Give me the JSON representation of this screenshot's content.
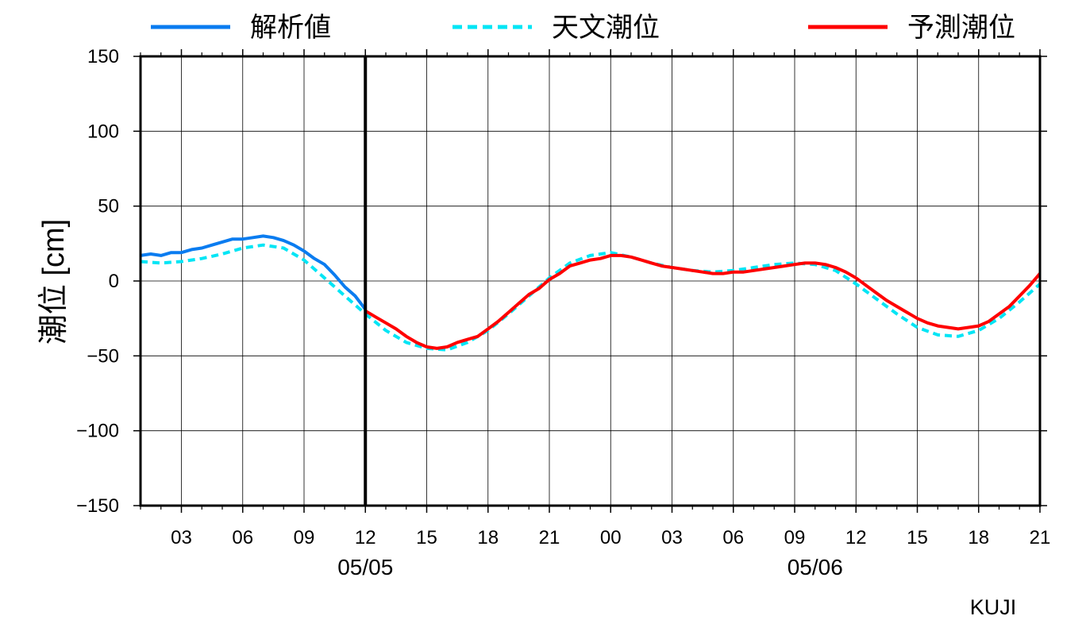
{
  "chart_data": {
    "type": "line",
    "ylabel": "潮位 [cm]",
    "ylim": [
      -150,
      150
    ],
    "y_ticks": [
      "150",
      "100",
      "50",
      "0",
      "−50",
      "−100",
      "−150"
    ],
    "x_tick_labels": [
      "03",
      "06",
      "09",
      "12",
      "15",
      "18",
      "21",
      "00",
      "03",
      "06",
      "09",
      "12",
      "15",
      "18",
      "21"
    ],
    "x_hour_range": [
      1,
      45
    ],
    "date_labels": [
      {
        "label": "05/05",
        "hour": 12
      },
      {
        "label": "05/06",
        "hour": 34
      }
    ],
    "analysis_boundary_hour": 12,
    "station": "KUJI",
    "legend_position": "top",
    "grid": true,
    "series": [
      {
        "name": "解析値",
        "color": "#0a7cf0",
        "style": "solid",
        "x": [
          1,
          1.5,
          2,
          2.5,
          3,
          3.5,
          4,
          4.5,
          5,
          5.5,
          6,
          6.5,
          7,
          7.5,
          8,
          8.5,
          9,
          9.5,
          10,
          10.5,
          11,
          11.5,
          12
        ],
        "y": [
          17,
          18,
          17,
          19,
          19,
          21,
          22,
          24,
          26,
          28,
          28,
          29,
          30,
          29,
          27,
          24,
          20,
          15,
          11,
          4,
          -4,
          -10,
          -19
        ]
      },
      {
        "name": "天文潮位",
        "color": "#00e5f5",
        "style": "dashed",
        "x": [
          1,
          2,
          3,
          4,
          5,
          6,
          7,
          8,
          9,
          10,
          11,
          12,
          13,
          14,
          15,
          16,
          17,
          18,
          19,
          20,
          21,
          22,
          23,
          24,
          25,
          26,
          27,
          28,
          29,
          30,
          31,
          32,
          33,
          34,
          35,
          36,
          37,
          38,
          39,
          40,
          41,
          42,
          43,
          44,
          45
        ],
        "y": [
          13,
          12,
          13,
          15,
          18,
          22,
          24,
          22,
          14,
          2,
          -10,
          -22,
          -33,
          -41,
          -45,
          -46,
          -41,
          -33,
          -22,
          -10,
          2,
          12,
          17,
          19,
          16,
          12,
          9,
          7,
          6,
          7,
          9,
          11,
          12,
          11,
          7,
          -2,
          -12,
          -22,
          -31,
          -36,
          -37,
          -33,
          -25,
          -14,
          -2
        ]
      },
      {
        "name": "予測潮位",
        "color": "#ff0000",
        "style": "solid",
        "x": [
          12,
          12.5,
          13,
          13.5,
          14,
          14.5,
          15,
          15.5,
          16,
          16.5,
          17,
          17.5,
          18,
          18.5,
          19,
          19.5,
          20,
          20.5,
          21,
          21.5,
          22,
          22.5,
          23,
          23.5,
          24,
          24.5,
          25,
          25.5,
          26,
          26.5,
          27,
          27.5,
          28,
          28.5,
          29,
          29.5,
          30,
          30.5,
          31,
          31.5,
          32,
          32.5,
          33,
          33.5,
          34,
          34.5,
          35,
          35.5,
          36,
          36.5,
          37,
          37.5,
          38,
          38.5,
          39,
          39.5,
          40,
          40.5,
          41,
          41.5,
          42,
          42.5,
          43,
          43.5,
          44,
          44.5,
          45
        ],
        "y": [
          -20,
          -24,
          -28,
          -32,
          -37,
          -41,
          -44,
          -45,
          -44,
          -41,
          -39,
          -37,
          -32,
          -27,
          -21,
          -15,
          -9,
          -5,
          1,
          5,
          10,
          12,
          14,
          15,
          17,
          17,
          16,
          14,
          12,
          10,
          9,
          8,
          7,
          6,
          5,
          5,
          6,
          6,
          7,
          8,
          9,
          10,
          11,
          12,
          12,
          11,
          9,
          6,
          2,
          -3,
          -8,
          -13,
          -17,
          -21,
          -25,
          -28,
          -30,
          -31,
          -32,
          -31,
          -30,
          -27,
          -22,
          -17,
          -10,
          -3,
          5
        ]
      }
    ]
  }
}
